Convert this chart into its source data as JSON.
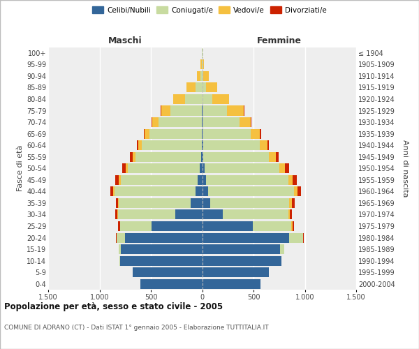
{
  "age_groups": [
    "0-4",
    "5-9",
    "10-14",
    "15-19",
    "20-24",
    "25-29",
    "30-34",
    "35-39",
    "40-44",
    "45-49",
    "50-54",
    "55-59",
    "60-64",
    "65-69",
    "70-74",
    "75-79",
    "80-84",
    "85-89",
    "90-94",
    "95-99",
    "100+"
  ],
  "birth_years": [
    "2000-2004",
    "1995-1999",
    "1990-1994",
    "1985-1989",
    "1980-1984",
    "1975-1979",
    "1970-1974",
    "1965-1969",
    "1960-1964",
    "1955-1959",
    "1950-1954",
    "1945-1949",
    "1940-1944",
    "1935-1939",
    "1930-1934",
    "1925-1929",
    "1920-1924",
    "1915-1919",
    "1910-1914",
    "1905-1909",
    "≤ 1904"
  ],
  "male": {
    "celibe": [
      600,
      680,
      800,
      790,
      750,
      490,
      260,
      110,
      65,
      45,
      25,
      12,
      6,
      3,
      2,
      1,
      0,
      0,
      0,
      0,
      0
    ],
    "coniugato": [
      0,
      0,
      5,
      20,
      80,
      310,
      560,
      700,
      790,
      750,
      700,
      640,
      580,
      510,
      420,
      310,
      170,
      65,
      18,
      4,
      1
    ],
    "vedovo": [
      0,
      0,
      0,
      0,
      0,
      2,
      4,
      8,
      12,
      18,
      22,
      28,
      35,
      45,
      65,
      90,
      110,
      85,
      32,
      10,
      2
    ],
    "divorziato": [
      0,
      0,
      0,
      2,
      8,
      15,
      20,
      22,
      28,
      32,
      32,
      22,
      16,
      10,
      5,
      3,
      1,
      0,
      0,
      0,
      0
    ]
  },
  "female": {
    "nubile": [
      570,
      650,
      770,
      760,
      850,
      490,
      200,
      80,
      55,
      38,
      22,
      12,
      8,
      4,
      2,
      1,
      0,
      0,
      0,
      0,
      0
    ],
    "coniugata": [
      0,
      0,
      5,
      40,
      130,
      380,
      640,
      770,
      840,
      800,
      730,
      640,
      550,
      470,
      360,
      240,
      100,
      38,
      10,
      2,
      0
    ],
    "vedova": [
      0,
      0,
      0,
      0,
      2,
      8,
      12,
      22,
      32,
      45,
      55,
      68,
      78,
      90,
      110,
      165,
      160,
      105,
      52,
      16,
      4
    ],
    "divorziata": [
      0,
      0,
      0,
      2,
      8,
      18,
      22,
      32,
      38,
      42,
      42,
      26,
      16,
      10,
      5,
      3,
      1,
      0,
      0,
      0,
      0
    ]
  },
  "colors": {
    "celibe": "#336699",
    "coniugato": "#c8dba0",
    "vedovo": "#f5c040",
    "divorziato": "#cc2200"
  },
  "legend_labels": [
    "Celibi/Nubili",
    "Coniugati/e",
    "Vedovi/e",
    "Divorziati/e"
  ],
  "xlim": 1500,
  "title": "Popolazione per età, sesso e stato civile - 2005",
  "subtitle": "COMUNE DI ADRANO (CT) - Dati ISTAT 1° gennaio 2005 - Elaborazione TUTTITALIA.IT",
  "ylabel_left": "Fasce di età",
  "ylabel_right": "Anni di nascita",
  "xlabel_left": "Maschi",
  "xlabel_right": "Femmine"
}
